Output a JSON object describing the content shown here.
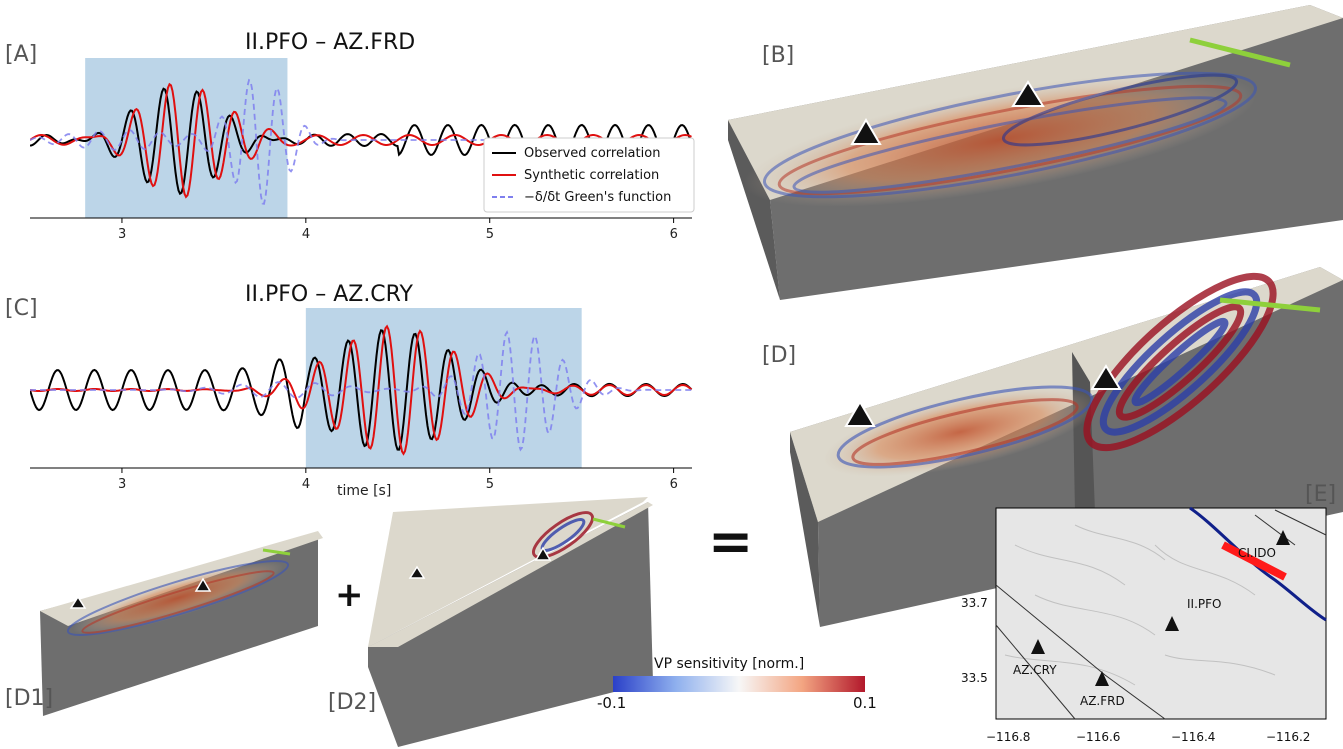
{
  "labels": {
    "A": "[A]",
    "B": "[B]",
    "C": "[C]",
    "D": "[D]",
    "D1": "[D1]",
    "D2": "[D2]",
    "E": "[E]"
  },
  "panel_a": {
    "title": "II.PFO – AZ.FRD"
  },
  "panel_c": {
    "title": "II.PFO – AZ.CRY",
    "xlabel": "time [s]"
  },
  "operators": {
    "equals": "=",
    "plus": "+"
  },
  "colorbar": {
    "title": "VP sensitivity [norm.]",
    "min_label": "-0.1",
    "max_label": "0.1",
    "colors": {
      "low": "#2a40c8",
      "mid": "#f7f7f7",
      "high": "#b2182b"
    }
  },
  "map": {
    "yticks": [
      "33.7",
      "33.5"
    ],
    "xticks": [
      "−116.8",
      "−116.6",
      "−116.4",
      "−116.2"
    ],
    "stations": [
      "CI.IDO",
      "II.PFO",
      "AZ.CRY",
      "AZ.FRD"
    ]
  },
  "chart_data": [
    {
      "type": "line",
      "title": "II.PFO – AZ.FRD",
      "xlabel": "",
      "ylabel": "",
      "xlim": [
        2.5,
        6.1
      ],
      "x_ticks": [
        3,
        4,
        5,
        6
      ],
      "highlight_window": [
        2.8,
        3.9
      ],
      "legend_position": "right",
      "series": [
        {
          "name": "Observed correlation",
          "color": "#000000",
          "style": "solid"
        },
        {
          "name": "Synthetic correlation",
          "color": "#e01010",
          "style": "solid"
        },
        {
          "name": "−δ/δt Green's function",
          "color": "#7f7fee",
          "style": "dashed"
        }
      ]
    },
    {
      "type": "line",
      "title": "II.PFO – AZ.CRY",
      "xlabel": "time [s]",
      "ylabel": "",
      "xlim": [
        2.5,
        6.1
      ],
      "x_ticks": [
        3,
        4,
        5,
        6
      ],
      "highlight_window": [
        4.0,
        5.5
      ],
      "series": [
        {
          "color": "#000000",
          "style": "solid"
        },
        {
          "color": "#e01010",
          "style": "solid"
        },
        {
          "color": "#7f7fee",
          "style": "dashed"
        }
      ]
    }
  ]
}
